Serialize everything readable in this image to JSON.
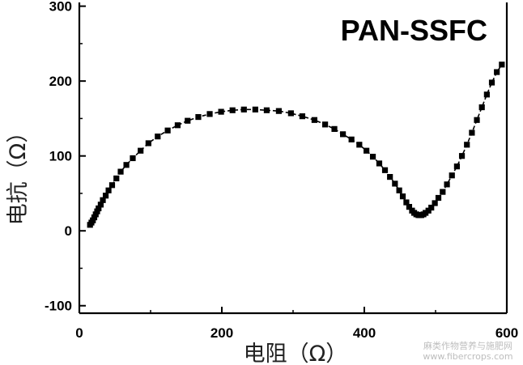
{
  "chart_data": {
    "type": "scatter",
    "title": "",
    "annotation": "PAN-SSFC",
    "xlabel": "电阻（Ω）",
    "ylabel": "电抗（Ω）",
    "xlim": [
      0,
      600
    ],
    "ylim": [
      -110,
      305
    ],
    "xticks": [
      0,
      200,
      400,
      600
    ],
    "yticks": [
      -100,
      0,
      100,
      200,
      300
    ],
    "marker": "square",
    "line_style": "dashed",
    "color": "#000000",
    "grid": false,
    "series": [
      {
        "x": [
          15,
          17,
          19,
          21,
          23,
          25,
          27,
          30,
          33,
          37,
          41,
          46,
          52,
          58,
          66,
          75,
          86,
          97,
          110,
          124,
          138,
          152,
          167,
          183,
          199,
          215,
          231,
          247,
          263,
          280,
          297,
          313,
          330,
          345,
          358,
          370,
          382,
          393,
          403,
          412,
          421,
          429,
          436,
          443,
          449,
          454,
          459,
          463,
          467,
          470,
          473,
          476,
          478,
          480,
          483,
          486,
          490,
          494,
          499,
          504,
          510,
          516,
          523,
          530,
          537,
          544,
          551,
          558,
          565,
          572,
          579,
          586,
          593
        ],
        "y": [
          8,
          11,
          14,
          18,
          22,
          26,
          30,
          35,
          41,
          47,
          54,
          61,
          70,
          79,
          88,
          97,
          107,
          117,
          126,
          134,
          141,
          147,
          152,
          156,
          159,
          161,
          162,
          162,
          161,
          160,
          157,
          153,
          148,
          142,
          136,
          129,
          122,
          115,
          107,
          99,
          90,
          81,
          72,
          63,
          54,
          46,
          38,
          32,
          27,
          24,
          22,
          21,
          21,
          21,
          22,
          24,
          27,
          31,
          37,
          44,
          52,
          62,
          74,
          86,
          100,
          115,
          131,
          148,
          165,
          182,
          198,
          212,
          222
        ]
      }
    ]
  },
  "watermark": {
    "line1": "麻类作物营养与施肥网",
    "line2": "www.fibercrops.com"
  }
}
